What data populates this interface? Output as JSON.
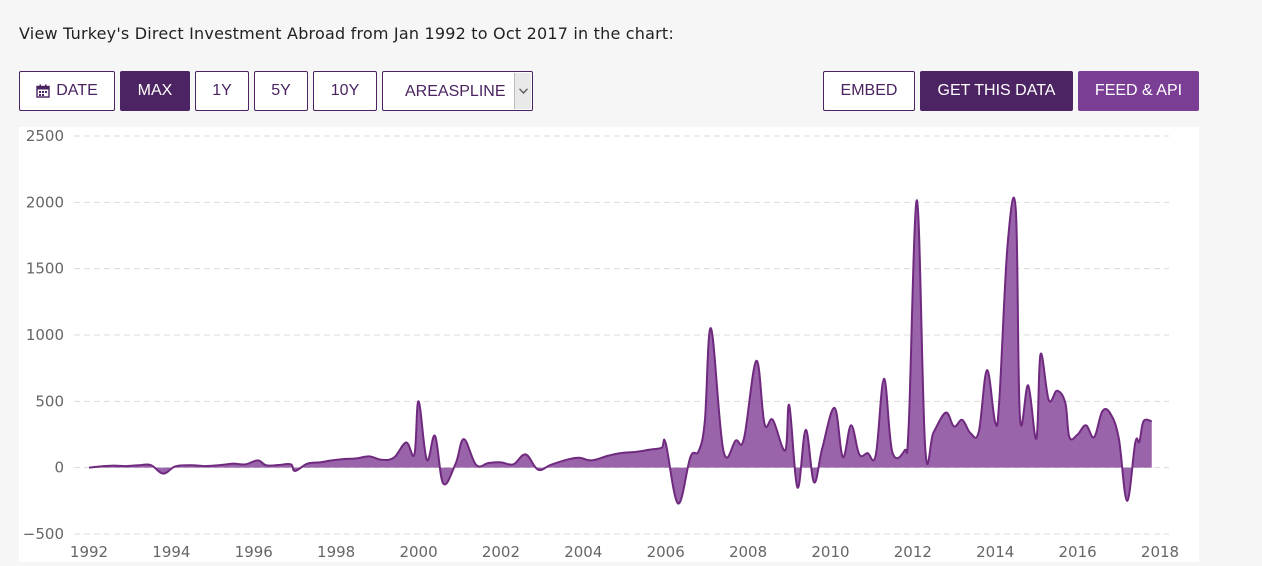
{
  "header": {
    "text": "View Turkey's Direct Investment Abroad from Jan 1992 to Oct 2017 in the chart:"
  },
  "toolbar": {
    "date_label": "DATE",
    "date_icon": "calendar-icon",
    "range_buttons": [
      "MAX",
      "1Y",
      "5Y",
      "10Y"
    ],
    "active_range": "MAX",
    "chart_type_value": "AREASPLINE",
    "embed_label": "EMBED",
    "get_data_label": "GET THIS DATA",
    "feed_label": "FEED & API"
  },
  "colors": {
    "brand_dark": "#4d2463",
    "brand_light": "#7a3f95",
    "area_fill": "#8b4f9e",
    "area_line": "#6f2a7f"
  },
  "chart_data": {
    "type": "area",
    "title": "",
    "xlabel": "",
    "ylabel": "",
    "ylim": [
      -500,
      2500
    ],
    "xlim": [
      1992,
      2018
    ],
    "yticks": [
      "2500",
      "2000",
      "1500",
      "1000",
      "500",
      "0",
      "−500"
    ],
    "xticks": [
      "1992",
      "1994",
      "1996",
      "1998",
      "2000",
      "2002",
      "2004",
      "2006",
      "2008",
      "2010",
      "2012",
      "2014",
      "2016",
      "2018"
    ],
    "grid": true,
    "legend": "none",
    "series": [
      {
        "x": [
          1992.0,
          1992.3,
          1992.6,
          1992.9,
          1993.2,
          1993.5,
          1993.8,
          1994.1,
          1994.5,
          1994.8,
          1995.2,
          1995.5,
          1995.8,
          1996.1,
          1996.3,
          1996.6,
          1996.9,
          1997.0,
          1997.3,
          1997.6,
          1997.9,
          1998.2,
          1998.5,
          1998.8,
          1999.1,
          1999.4,
          1999.7,
          1999.9,
          2000.0,
          2000.2,
          2000.4,
          2000.6,
          2000.9,
          2001.1,
          2001.4,
          2001.7,
          2002.0,
          2002.3,
          2002.6,
          2002.9,
          2003.2,
          2003.6,
          2003.9,
          2004.2,
          2004.6,
          2004.9,
          2005.3,
          2005.6,
          2005.9,
          2006.0,
          2006.3,
          2006.6,
          2006.8,
          2006.95,
          2007.1,
          2007.4,
          2007.7,
          2007.9,
          2008.2,
          2008.4,
          2008.6,
          2008.9,
          2009.0,
          2009.2,
          2009.4,
          2009.6,
          2009.8,
          2010.1,
          2010.3,
          2010.5,
          2010.7,
          2010.9,
          2011.1,
          2011.3,
          2011.5,
          2011.8,
          2011.9,
          2012.1,
          2012.3,
          2012.5,
          2012.8,
          2013.0,
          2013.2,
          2013.4,
          2013.6,
          2013.8,
          2014.0,
          2014.1,
          2014.3,
          2014.5,
          2014.6,
          2014.8,
          2015.0,
          2015.1,
          2015.3,
          2015.5,
          2015.7,
          2015.8,
          2016.0,
          2016.2,
          2016.4,
          2016.6,
          2016.8,
          2017.0,
          2017.2,
          2017.4,
          2017.5,
          2017.6,
          2017.8
        ],
        "y": [
          0,
          10,
          15,
          12,
          18,
          20,
          -45,
          10,
          18,
          12,
          20,
          30,
          25,
          55,
          18,
          20,
          25,
          -25,
          30,
          40,
          55,
          65,
          70,
          85,
          60,
          75,
          190,
          100,
          500,
          60,
          240,
          -120,
          30,
          215,
          20,
          35,
          40,
          25,
          100,
          -15,
          20,
          60,
          75,
          55,
          90,
          110,
          120,
          135,
          150,
          185,
          -270,
          80,
          125,
          350,
          1050,
          130,
          205,
          220,
          805,
          330,
          360,
          130,
          470,
          -150,
          285,
          -110,
          145,
          450,
          80,
          320,
          100,
          110,
          95,
          670,
          120,
          130,
          320,
          2015,
          150,
          265,
          415,
          310,
          360,
          260,
          270,
          735,
          340,
          515,
          1680,
          1940,
          380,
          620,
          220,
          855,
          510,
          580,
          490,
          230,
          250,
          320,
          230,
          425,
          405,
          220,
          -250,
          190,
          195,
          350,
          350
        ]
      }
    ]
  }
}
